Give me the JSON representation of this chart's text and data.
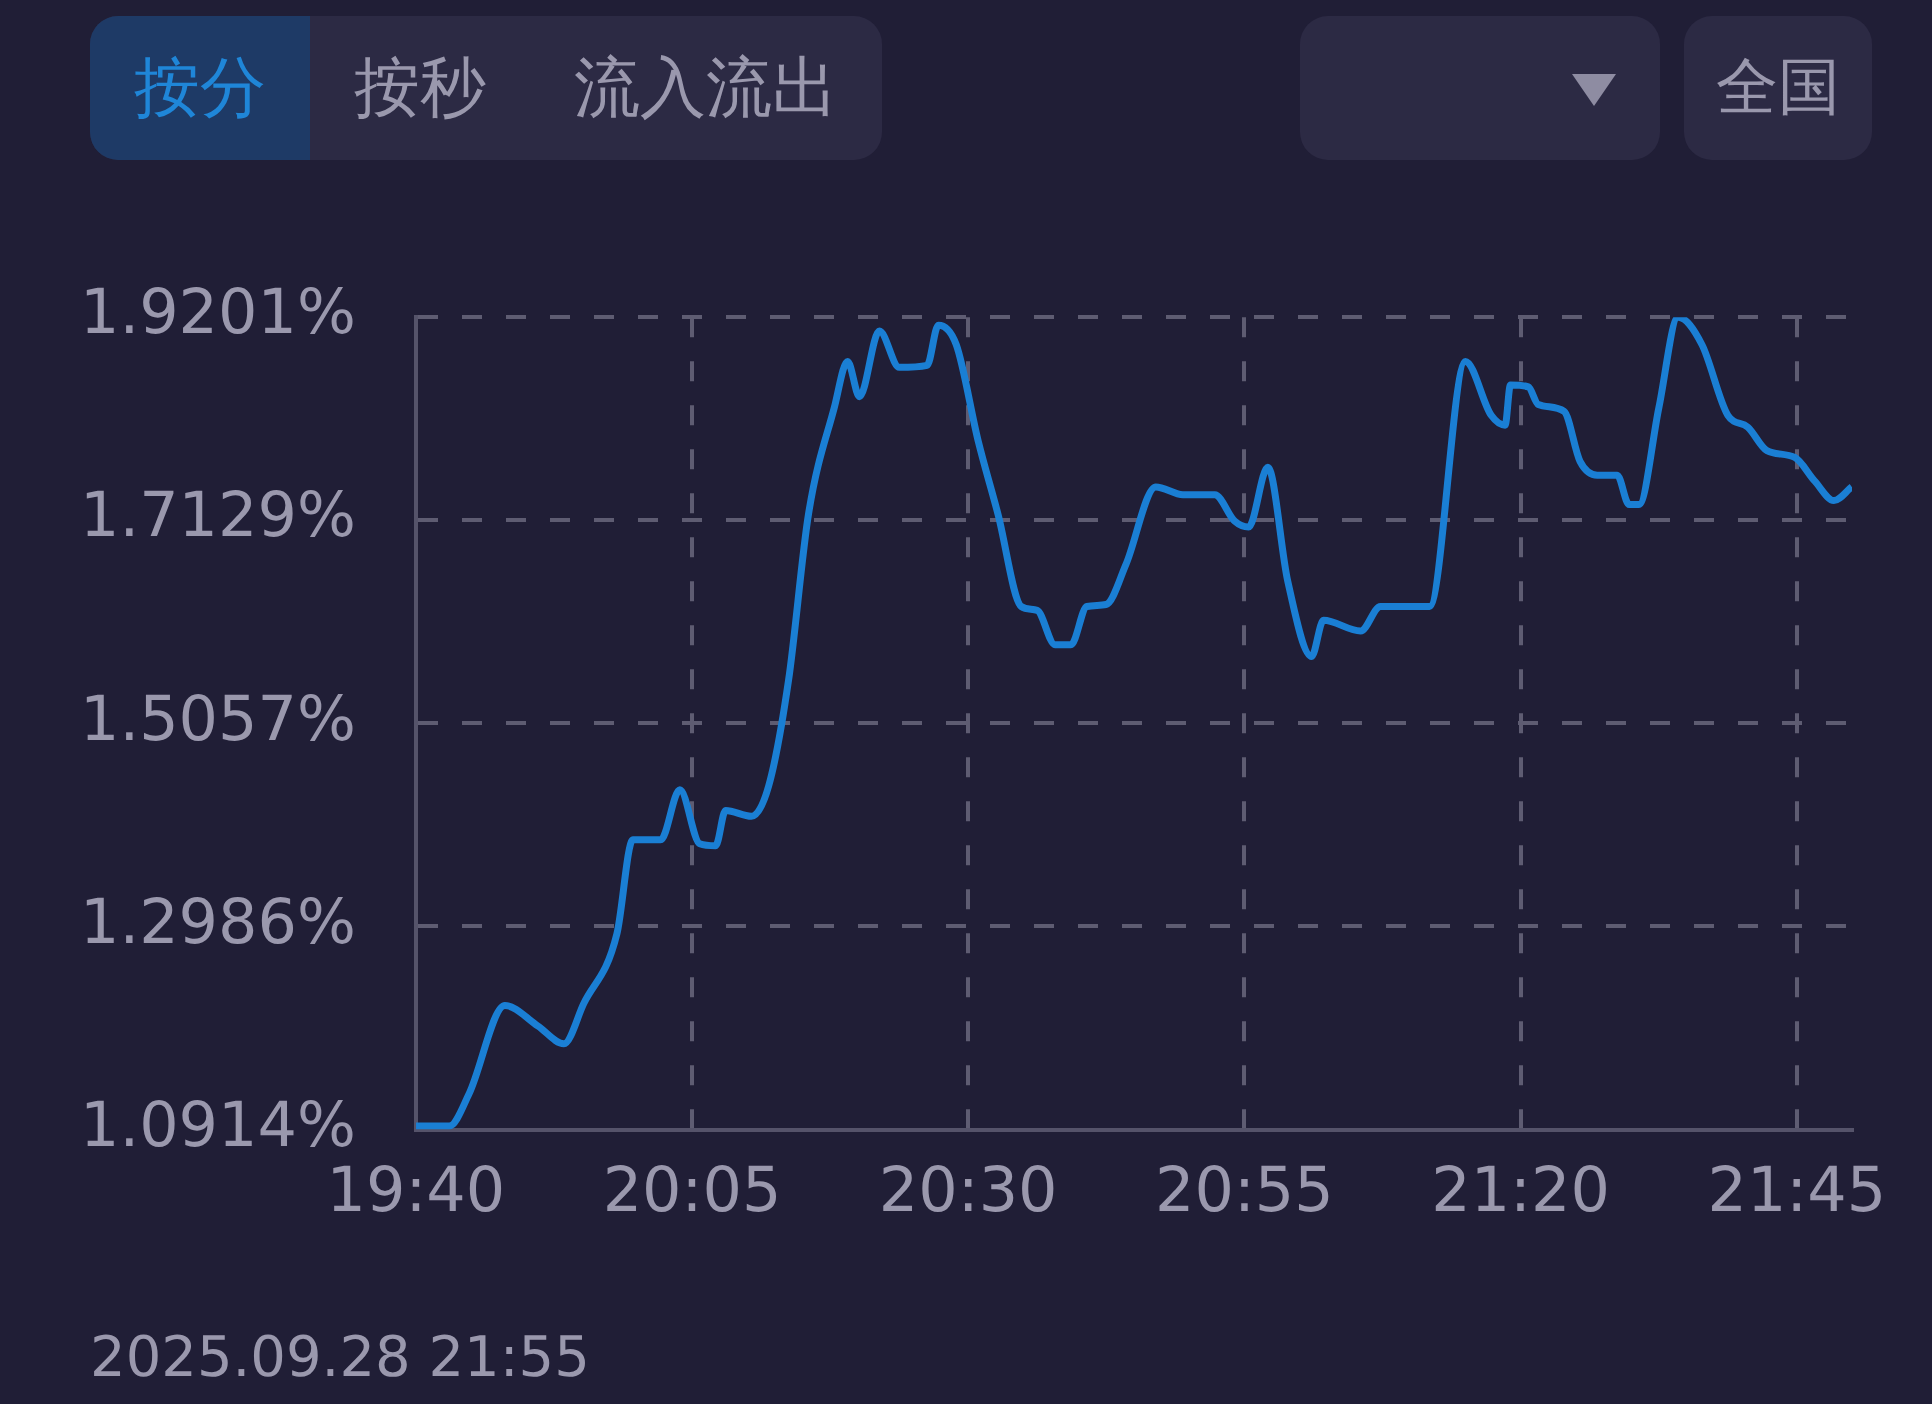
{
  "chart_data": {
    "type": "line",
    "annotations": [
      "按分",
      "按秒",
      "流入流出",
      "全国",
      "2025.09.28 21:55"
    ],
    "x": [
      19.667,
      19.717,
      19.747,
      19.801,
      19.851,
      19.89,
      19.92,
      19.97,
      19.994,
      20.036,
      20.065,
      20.095,
      20.119,
      20.134,
      20.173,
      20.199,
      20.229,
      20.259,
      20.298,
      20.318,
      20.336,
      20.366,
      20.396,
      20.438,
      20.455,
      20.482,
      20.515,
      20.545,
      20.58,
      20.604,
      20.631,
      20.655,
      20.679,
      20.708,
      20.738,
      20.783,
      20.824,
      20.872,
      20.902,
      20.923,
      20.952,
      20.982,
      21.018,
      21.036,
      21.092,
      21.122,
      21.196,
      21.25,
      21.289,
      21.31,
      21.318,
      21.345,
      21.36,
      21.399,
      21.423,
      21.449,
      21.479,
      21.497,
      21.512,
      21.542,
      21.571,
      21.607,
      21.646,
      21.676,
      21.705,
      21.747,
      21.777,
      21.806,
      21.833
    ],
    "series": [
      {
        "color": "#1a7fd4",
        "values": [
          1.095,
          1.095,
          1.128,
          1.218,
          1.197,
          1.179,
          1.22,
          1.291,
          1.387,
          1.387,
          1.438,
          1.383,
          1.381,
          1.417,
          1.411,
          1.442,
          1.55,
          1.719,
          1.828,
          1.875,
          1.839,
          1.906,
          1.869,
          1.871,
          1.912,
          1.892,
          1.794,
          1.719,
          1.625,
          1.621,
          1.586,
          1.586,
          1.625,
          1.627,
          1.668,
          1.747,
          1.739,
          1.739,
          1.712,
          1.706,
          1.767,
          1.651,
          1.574,
          1.611,
          1.6,
          1.625,
          1.625,
          1.875,
          1.82,
          1.81,
          1.851,
          1.849,
          1.831,
          1.824,
          1.773,
          1.759,
          1.759,
          1.729,
          1.729,
          1.828,
          1.92,
          1.892,
          1.82,
          1.808,
          1.784,
          1.777,
          1.753,
          1.733,
          1.747
        ]
      }
    ],
    "xlim": [
      19.6667,
      21.8333
    ],
    "xticks": [
      {
        "value": 19.6667,
        "label": "19:40"
      },
      {
        "value": 20.0833,
        "label": "20:05"
      },
      {
        "value": 20.5,
        "label": "20:30"
      },
      {
        "value": 20.9167,
        "label": "20:55"
      },
      {
        "value": 21.3333,
        "label": "21:20"
      },
      {
        "value": 21.75,
        "label": "21:45"
      }
    ],
    "ylim": [
      1.0914,
      1.9201
    ],
    "yticks": [
      {
        "value": 1.0914,
        "label": "1.0914%"
      },
      {
        "value": 1.2986,
        "label": "1.2986%"
      },
      {
        "value": 1.5057,
        "label": "1.5057%"
      },
      {
        "value": 1.7129,
        "label": "1.7129%"
      },
      {
        "value": 1.9201,
        "label": "1.9201%"
      }
    ],
    "grid": true,
    "legend": false,
    "marker": "none",
    "line_style": "solid"
  }
}
